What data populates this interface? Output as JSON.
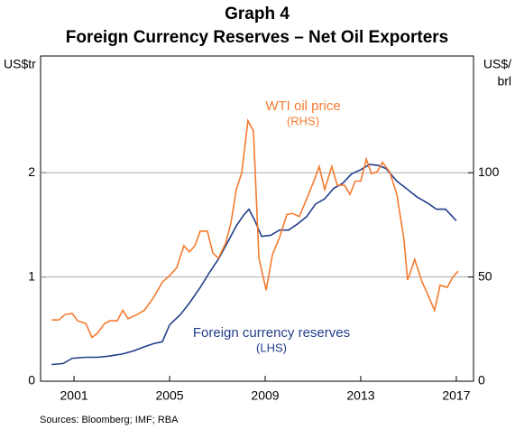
{
  "chart_data": {
    "type": "line",
    "title": "Graph 4",
    "subtitle": "Foreign Currency Reserves – Net Oil Exporters",
    "ylabel": "US$tr",
    "y2label": [
      "US$/",
      "brl"
    ],
    "source": "Sources: Bloomberg; IMF; RBA",
    "xlim": [
      1999.6,
      2017.72
    ],
    "xticks": [
      2001,
      2005,
      2009,
      2013,
      2017
    ],
    "ylim": [
      0,
      3.12
    ],
    "yticks": [
      0,
      1,
      2
    ],
    "y2lim": [
      0,
      156
    ],
    "y2ticks": [
      0,
      50,
      100
    ],
    "grid": true,
    "series": [
      {
        "name": [
          "Foreign currency reserves",
          "(LHS)"
        ],
        "color": "#233e8b",
        "axis": "y",
        "x": [
          2000.06,
          2000.55,
          2000.92,
          2001.49,
          2001.98,
          2002.43,
          2003.0,
          2003.49,
          2003.94,
          2004.32,
          2004.7,
          2005.0,
          2005.45,
          2005.83,
          2006.28,
          2006.66,
          2007.04,
          2007.42,
          2007.79,
          2008.09,
          2008.32,
          2008.55,
          2008.85,
          2009.23,
          2009.6,
          2009.98,
          2010.36,
          2010.74,
          2011.11,
          2011.49,
          2011.87,
          2012.25,
          2012.62,
          2013.0,
          2013.38,
          2013.75,
          2014.06,
          2014.51,
          2014.96,
          2015.34,
          2015.79,
          2016.17,
          2016.55,
          2017.0
        ],
        "values": [
          0.16,
          0.17,
          0.22,
          0.23,
          0.23,
          0.24,
          0.26,
          0.29,
          0.33,
          0.36,
          0.38,
          0.54,
          0.64,
          0.75,
          0.9,
          1.04,
          1.17,
          1.33,
          1.49,
          1.59,
          1.65,
          1.55,
          1.39,
          1.4,
          1.45,
          1.45,
          1.51,
          1.58,
          1.7,
          1.75,
          1.85,
          1.9,
          1.99,
          2.03,
          2.08,
          2.07,
          2.04,
          1.92,
          1.84,
          1.77,
          1.71,
          1.65,
          1.65,
          1.54
        ]
      },
      {
        "name": [
          "WTI oil price",
          "(RHS)"
        ],
        "color": "#f47b30",
        "axis": "y2",
        "x": [
          2000.06,
          2000.36,
          2000.62,
          2000.92,
          2001.15,
          2001.49,
          2001.75,
          2001.98,
          2002.28,
          2002.51,
          2002.81,
          2003.04,
          2003.26,
          2003.64,
          2003.94,
          2004.32,
          2004.7,
          2005.0,
          2005.3,
          2005.6,
          2005.83,
          2006.06,
          2006.28,
          2006.58,
          2006.81,
          2007.04,
          2007.34,
          2007.57,
          2007.79,
          2008.02,
          2008.28,
          2008.51,
          2008.74,
          2009.04,
          2009.3,
          2009.6,
          2009.91,
          2010.13,
          2010.43,
          2010.74,
          2011.04,
          2011.26,
          2011.49,
          2011.79,
          2012.02,
          2012.32,
          2012.55,
          2012.77,
          2013.0,
          2013.23,
          2013.45,
          2013.68,
          2013.91,
          2014.21,
          2014.51,
          2014.81,
          2014.96,
          2015.26,
          2015.57,
          2015.79,
          2016.09,
          2016.32,
          2016.62,
          2016.85,
          2017.08
        ],
        "values": [
          29.4,
          29.4,
          32,
          32.5,
          29,
          27.7,
          21,
          23,
          27.7,
          29,
          29,
          34,
          30,
          32,
          34,
          40,
          47.6,
          50.6,
          54.5,
          65,
          62,
          65,
          72,
          72,
          61.5,
          59,
          66,
          76,
          92,
          100,
          125,
          120,
          59,
          43.7,
          60.6,
          69,
          80,
          80.5,
          79,
          87.5,
          96,
          103,
          92,
          103,
          94,
          94,
          89.6,
          96,
          96,
          106.5,
          99.6,
          100.4,
          105,
          100.4,
          89.6,
          68,
          48.5,
          58.4,
          47.6,
          42,
          34,
          46,
          45,
          50,
          52.8
        ]
      }
    ]
  }
}
